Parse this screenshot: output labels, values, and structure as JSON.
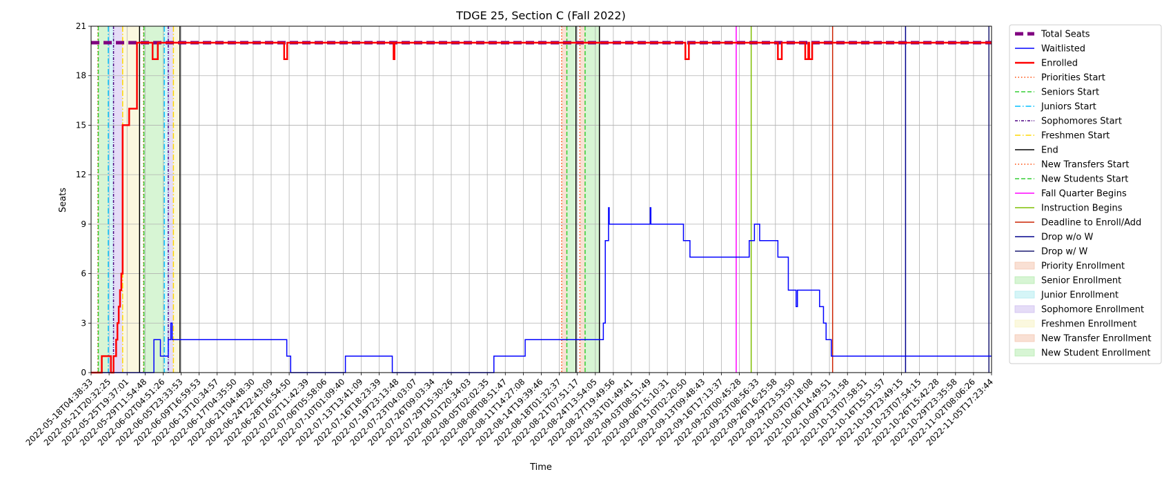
{
  "chart_data": {
    "type": "line",
    "title": "TDGE 25, Section C (Fall 2022)",
    "xlabel": "Time",
    "ylabel": "Seats",
    "ylim": [
      0,
      21
    ],
    "yticks": [
      0,
      3,
      6,
      9,
      12,
      15,
      18,
      21
    ],
    "grid": true,
    "legend_placement": "outside-right",
    "x_range": [
      "2022-05-18T04:38:33",
      "2022-11-07T00:00:00"
    ],
    "x_tick_labels": [
      "2022-05-18T04:38:33",
      "2022-05-21T20:32:25",
      "2022-05-25T19:37:01",
      "2022-05-29T11:54:48",
      "2022-06-02T04:51:26",
      "2022-06-05T23:33:53",
      "2022-06-09T16:59:53",
      "2022-06-13T10:34:57",
      "2022-06-17T04:35:50",
      "2022-06-21T04:48:30",
      "2022-06-24T22:43:09",
      "2022-06-28T16:54:50",
      "2022-07-02T11:42:39",
      "2022-07-06T05:58:06",
      "2022-07-10T01:09:40",
      "2022-07-13T13:41:09",
      "2022-07-16T18:23:39",
      "2022-07-19T23:13:48",
      "2022-07-23T04:03:07",
      "2022-07-26T09:03:34",
      "2022-07-29T15:30:26",
      "2022-08-01T20:34:03",
      "2022-08-05T02:02:35",
      "2022-08-08T08:51:47",
      "2022-08-11T14:27:08",
      "2022-08-14T19:39:46",
      "2022-08-18T01:32:37",
      "2022-08-21T07:51:17",
      "2022-08-24T13:54:05",
      "2022-08-27T19:49:56",
      "2022-08-31T01:49:41",
      "2022-09-03T08:51:49",
      "2022-09-06T15:10:31",
      "2022-09-10T02:20:50",
      "2022-09-13T09:48:43",
      "2022-09-16T17:13:37",
      "2022-09-20T00:45:28",
      "2022-09-23T08:56:33",
      "2022-09-26T16:25:58",
      "2022-09-29T23:53:50",
      "2022-10-03T07:18:08",
      "2022-10-06T14:49:51",
      "2022-10-09T22:31:58",
      "2022-10-13T07:58:51",
      "2022-10-16T15:51:57",
      "2022-10-19T23:49:15",
      "2022-10-23T07:54:15",
      "2022-10-26T15:42:28",
      "2022-10-29T23:35:58",
      "2022-11-02T08:06:26",
      "2022-11-05T17:23:44"
    ],
    "series": [
      {
        "name": "Total Seats",
        "color": "#800080",
        "style": "thick-dashed",
        "points": [
          [
            "2022-05-18T04:38:33",
            20
          ],
          [
            "2022-11-07T00:00:00",
            20
          ]
        ]
      },
      {
        "name": "Waitlisted",
        "color": "#0000ff",
        "style": "solid",
        "points": [
          [
            "2022-05-18T04:38:33",
            0
          ],
          [
            "2022-05-30T06:00:00",
            0
          ],
          [
            "2022-05-30T06:00:00",
            2
          ],
          [
            "2022-05-31T12:00:00",
            2
          ],
          [
            "2022-05-31T12:00:00",
            1
          ],
          [
            "2022-06-02T00:00:00",
            1
          ],
          [
            "2022-06-02T00:00:00",
            2
          ],
          [
            "2022-06-02T12:00:00",
            2
          ],
          [
            "2022-06-02T12:00:00",
            3
          ],
          [
            "2022-06-02T18:00:00",
            3
          ],
          [
            "2022-06-02T18:00:00",
            2
          ],
          [
            "2022-06-24T18:00:00",
            2
          ],
          [
            "2022-06-24T18:00:00",
            1
          ],
          [
            "2022-06-25T12:00:00",
            1
          ],
          [
            "2022-06-25T12:00:00",
            0
          ],
          [
            "2022-07-06T00:00:00",
            0
          ],
          [
            "2022-07-06T00:00:00",
            1
          ],
          [
            "2022-07-15T00:00:00",
            1
          ],
          [
            "2022-07-15T00:00:00",
            0
          ],
          [
            "2022-08-03T12:00:00",
            0
          ],
          [
            "2022-08-03T12:00:00",
            1
          ],
          [
            "2022-08-09T12:00:00",
            1
          ],
          [
            "2022-08-09T12:00:00",
            2
          ],
          [
            "2022-08-24T12:00:00",
            2
          ],
          [
            "2022-08-24T12:00:00",
            3
          ],
          [
            "2022-08-24T21:00:00",
            3
          ],
          [
            "2022-08-24T21:00:00",
            8
          ],
          [
            "2022-08-25T12:00:00",
            8
          ],
          [
            "2022-08-25T12:00:00",
            10
          ],
          [
            "2022-08-25T15:00:00",
            10
          ],
          [
            "2022-08-25T15:00:00",
            9
          ],
          [
            "2022-09-02T12:00:00",
            9
          ],
          [
            "2022-09-02T12:00:00",
            10
          ],
          [
            "2022-09-02T15:00:00",
            10
          ],
          [
            "2022-09-02T15:00:00",
            9
          ],
          [
            "2022-09-08T21:00:00",
            9
          ],
          [
            "2022-09-08T21:00:00",
            8
          ],
          [
            "2022-09-10T03:00:00",
            8
          ],
          [
            "2022-09-10T03:00:00",
            7
          ],
          [
            "2022-09-21T12:00:00",
            7
          ],
          [
            "2022-09-21T12:00:00",
            8
          ],
          [
            "2022-09-22T12:00:00",
            8
          ],
          [
            "2022-09-22T12:00:00",
            9
          ],
          [
            "2022-09-23T12:00:00",
            9
          ],
          [
            "2022-09-23T12:00:00",
            8
          ],
          [
            "2022-09-27T00:00:00",
            8
          ],
          [
            "2022-09-27T00:00:00",
            7
          ],
          [
            "2022-09-29T00:00:00",
            7
          ],
          [
            "2022-09-29T00:00:00",
            5
          ],
          [
            "2022-09-30T12:00:00",
            5
          ],
          [
            "2022-09-30T12:00:00",
            4
          ],
          [
            "2022-09-30T18:00:00",
            4
          ],
          [
            "2022-09-30T18:00:00",
            5
          ],
          [
            "2022-10-05T00:00:00",
            5
          ],
          [
            "2022-10-05T00:00:00",
            4
          ],
          [
            "2022-10-05T18:00:00",
            4
          ],
          [
            "2022-10-05T18:00:00",
            3
          ],
          [
            "2022-10-06T06:00:00",
            3
          ],
          [
            "2022-10-06T06:00:00",
            2
          ],
          [
            "2022-10-07T06:00:00",
            2
          ],
          [
            "2022-10-07T06:00:00",
            1
          ],
          [
            "2022-11-07T00:00:00",
            1
          ]
        ]
      },
      {
        "name": "Enrolled",
        "color": "#ff0000",
        "style": "thick",
        "points": [
          [
            "2022-05-18T04:38:33",
            0
          ],
          [
            "2022-05-20T06:00:00",
            0
          ],
          [
            "2022-05-20T06:00:00",
            1
          ],
          [
            "2022-05-22T00:00:00",
            1
          ],
          [
            "2022-05-22T00:00:00",
            0
          ],
          [
            "2022-05-22T12:00:00",
            0
          ],
          [
            "2022-05-22T12:00:00",
            1
          ],
          [
            "2022-05-23T00:00:00",
            1
          ],
          [
            "2022-05-23T00:00:00",
            2
          ],
          [
            "2022-05-23T06:00:00",
            2
          ],
          [
            "2022-05-23T06:00:00",
            3
          ],
          [
            "2022-05-23T12:00:00",
            3
          ],
          [
            "2022-05-23T12:00:00",
            4
          ],
          [
            "2022-05-23T18:00:00",
            4
          ],
          [
            "2022-05-23T18:00:00",
            5
          ],
          [
            "2022-05-24T00:00:00",
            5
          ],
          [
            "2022-05-24T00:00:00",
            6
          ],
          [
            "2022-05-24T06:00:00",
            6
          ],
          [
            "2022-05-24T06:00:00",
            15
          ],
          [
            "2022-05-25T12:00:00",
            15
          ],
          [
            "2022-05-25T12:00:00",
            16
          ],
          [
            "2022-05-27T00:00:00",
            16
          ],
          [
            "2022-05-27T00:00:00",
            20
          ],
          [
            "2022-05-30T00:00:00",
            20
          ],
          [
            "2022-05-30T00:00:00",
            19
          ],
          [
            "2022-05-31T00:00:00",
            19
          ],
          [
            "2022-05-31T00:00:00",
            20
          ],
          [
            "2022-06-24T06:00:00",
            20
          ],
          [
            "2022-06-24T06:00:00",
            19
          ],
          [
            "2022-06-24T20:00:00",
            19
          ],
          [
            "2022-06-24T20:00:00",
            20
          ],
          [
            "2022-07-15T06:00:00",
            20
          ],
          [
            "2022-07-15T06:00:00",
            19
          ],
          [
            "2022-07-15T10:00:00",
            19
          ],
          [
            "2022-07-15T10:00:00",
            20
          ],
          [
            "2022-09-09T06:00:00",
            20
          ],
          [
            "2022-09-09T06:00:00",
            19
          ],
          [
            "2022-09-09T22:00:00",
            19
          ],
          [
            "2022-09-09T22:00:00",
            20
          ],
          [
            "2022-09-27T00:00:00",
            20
          ],
          [
            "2022-09-27T00:00:00",
            19
          ],
          [
            "2022-09-27T18:00:00",
            19
          ],
          [
            "2022-09-27T18:00:00",
            20
          ],
          [
            "2022-10-02T06:00:00",
            20
          ],
          [
            "2022-10-02T06:00:00",
            19
          ],
          [
            "2022-10-02T20:00:00",
            19
          ],
          [
            "2022-10-02T20:00:00",
            20
          ],
          [
            "2022-10-03T00:00:00",
            20
          ],
          [
            "2022-10-03T00:00:00",
            19
          ],
          [
            "2022-10-03T14:00:00",
            19
          ],
          [
            "2022-10-03T14:00:00",
            20
          ],
          [
            "2022-11-07T00:00:00",
            20
          ]
        ]
      }
    ],
    "vertical_lines": [
      {
        "name": "Priorities Start",
        "color": "#ff4500",
        "style": "dotted",
        "x": "2022-05-19T12:00:00"
      },
      {
        "name": "Seniors Start",
        "color": "#32cd32",
        "style": "dashed",
        "x": "2022-05-19T14:00:00"
      },
      {
        "name": "Juniors Start",
        "color": "#00bfff",
        "style": "dashdot",
        "x": "2022-05-21T12:00:00"
      },
      {
        "name": "Sophomores Start",
        "color": "#4b0082",
        "style": "dashdot-dense",
        "x": "2022-05-22T12:00:00"
      },
      {
        "name": "Freshmen Start",
        "color": "#ffd700",
        "style": "dashdot",
        "x": "2022-05-24T06:00:00"
      },
      {
        "name": "End",
        "color": "#000000",
        "style": "solid",
        "x": "2022-05-27T12:00:00"
      },
      {
        "name": "Priorities Start",
        "color": "#ff4500",
        "style": "dotted",
        "x": "2022-05-28T06:00:00"
      },
      {
        "name": "Seniors Start",
        "color": "#32cd32",
        "style": "dashed",
        "x": "2022-05-28T08:00:00"
      },
      {
        "name": "Juniors Start",
        "color": "#00bfff",
        "style": "dashdot",
        "x": "2022-06-01T06:00:00"
      },
      {
        "name": "Sophomores Start",
        "color": "#4b0082",
        "style": "dashdot-dense",
        "x": "2022-06-02T00:00:00"
      },
      {
        "name": "Freshmen Start",
        "color": "#ffd700",
        "style": "dashdot",
        "x": "2022-06-03T00:00:00"
      },
      {
        "name": "End",
        "color": "#000000",
        "style": "solid",
        "x": "2022-06-04T06:00:00"
      },
      {
        "name": "New Transfers Start",
        "color": "#ff4500",
        "style": "dotted",
        "x": "2022-08-16T12:00:00"
      },
      {
        "name": "New Students Start",
        "color": "#32cd32",
        "style": "dashed",
        "x": "2022-08-17T12:00:00"
      },
      {
        "name": "End",
        "color": "#000000",
        "style": "solid",
        "x": "2022-08-19T06:00:00"
      },
      {
        "name": "New Transfers Start",
        "color": "#ff4500",
        "style": "dotted",
        "x": "2022-08-20T00:00:00"
      },
      {
        "name": "New Students Start",
        "color": "#32cd32",
        "style": "dashed",
        "x": "2022-08-21T00:00:00"
      },
      {
        "name": "End",
        "color": "#000000",
        "style": "solid",
        "x": "2022-08-23T18:00:00"
      },
      {
        "name": "Fall Quarter Begins",
        "color": "#ff00ff",
        "style": "solid",
        "x": "2022-09-19T00:00:00"
      },
      {
        "name": "Instruction Begins",
        "color": "#7fbf00",
        "style": "solid",
        "x": "2022-09-21T21:00:00"
      },
      {
        "name": "Deadline to Enroll/Add",
        "color": "#cc2200",
        "style": "solid",
        "x": "2022-10-07T12:00:00"
      },
      {
        "name": "Drop w/o W",
        "color": "#00008b",
        "style": "solid",
        "x": "2022-10-21T12:00:00"
      },
      {
        "name": "Drop w/ W",
        "color": "#191970",
        "style": "solid",
        "x": "2022-11-06T12:00:00"
      }
    ],
    "shaded_spans": [
      {
        "name": "Priority Enrollment",
        "color": "#f4c7b0",
        "start": "2022-05-19T12:00:00",
        "end": "2022-05-19T14:00:00"
      },
      {
        "name": "Senior Enrollment",
        "color": "#b6ecb0",
        "start": "2022-05-19T14:00:00",
        "end": "2022-05-21T12:00:00"
      },
      {
        "name": "Junior Enrollment",
        "color": "#b3ecf0",
        "start": "2022-05-21T12:00:00",
        "end": "2022-05-22T12:00:00"
      },
      {
        "name": "Sophomore Enrollment",
        "color": "#d0c0f0",
        "start": "2022-05-22T12:00:00",
        "end": "2022-05-24T06:00:00"
      },
      {
        "name": "Freshmen Enrollment",
        "color": "#f7f3c4",
        "start": "2022-05-24T06:00:00",
        "end": "2022-05-27T12:00:00"
      },
      {
        "name": "Priority Enrollment",
        "color": "#f4c7b0",
        "start": "2022-05-28T06:00:00",
        "end": "2022-05-28T08:00:00"
      },
      {
        "name": "Senior Enrollment",
        "color": "#b6ecb0",
        "start": "2022-05-28T08:00:00",
        "end": "2022-06-01T06:00:00"
      },
      {
        "name": "Junior Enrollment",
        "color": "#b3ecf0",
        "start": "2022-06-01T06:00:00",
        "end": "2022-06-02T00:00:00"
      },
      {
        "name": "Sophomore Enrollment",
        "color": "#d0c0f0",
        "start": "2022-06-02T00:00:00",
        "end": "2022-06-03T00:00:00"
      },
      {
        "name": "Freshmen Enrollment",
        "color": "#f7f3c4",
        "start": "2022-06-03T00:00:00",
        "end": "2022-06-04T06:00:00"
      },
      {
        "name": "New Transfer Enrollment",
        "color": "#f4c7b0",
        "start": "2022-08-16T12:00:00",
        "end": "2022-08-17T12:00:00"
      },
      {
        "name": "New Student Enrollment",
        "color": "#b6ecb0",
        "start": "2022-08-17T12:00:00",
        "end": "2022-08-19T06:00:00"
      },
      {
        "name": "New Transfer Enrollment",
        "color": "#f4c7b0",
        "start": "2022-08-20T00:00:00",
        "end": "2022-08-21T00:00:00"
      },
      {
        "name": "New Student Enrollment",
        "color": "#b6ecb0",
        "start": "2022-08-21T00:00:00",
        "end": "2022-08-23T18:00:00"
      }
    ],
    "legend": [
      {
        "label": "Total Seats",
        "kind": "line",
        "color": "#800080",
        "style": "thick-dashed"
      },
      {
        "label": "Waitlisted",
        "kind": "line",
        "color": "#0000ff",
        "style": "solid"
      },
      {
        "label": "Enrolled",
        "kind": "line",
        "color": "#ff0000",
        "style": "thick"
      },
      {
        "label": "Priorities Start",
        "kind": "line",
        "color": "#ff4500",
        "style": "dotted"
      },
      {
        "label": "Seniors Start",
        "kind": "line",
        "color": "#32cd32",
        "style": "dashed"
      },
      {
        "label": "Juniors Start",
        "kind": "line",
        "color": "#00bfff",
        "style": "dashdot"
      },
      {
        "label": "Sophomores Start",
        "kind": "line",
        "color": "#4b0082",
        "style": "dashdot-dense"
      },
      {
        "label": "Freshmen Start",
        "kind": "line",
        "color": "#ffd700",
        "style": "dashdot"
      },
      {
        "label": "End",
        "kind": "line",
        "color": "#000000",
        "style": "solid"
      },
      {
        "label": "New Transfers Start",
        "kind": "line",
        "color": "#ff4500",
        "style": "dotted"
      },
      {
        "label": "New Students Start",
        "kind": "line",
        "color": "#32cd32",
        "style": "dashed"
      },
      {
        "label": "Fall Quarter Begins",
        "kind": "line",
        "color": "#ff00ff",
        "style": "solid"
      },
      {
        "label": "Instruction Begins",
        "kind": "line",
        "color": "#7fbf00",
        "style": "solid"
      },
      {
        "label": "Deadline to Enroll/Add",
        "kind": "line",
        "color": "#cc2200",
        "style": "solid"
      },
      {
        "label": "Drop w/o W",
        "kind": "line",
        "color": "#00008b",
        "style": "solid"
      },
      {
        "label": "Drop w/ W",
        "kind": "line",
        "color": "#191970",
        "style": "solid"
      },
      {
        "label": "Priority Enrollment",
        "kind": "patch",
        "color": "#f4c7b0"
      },
      {
        "label": "Senior Enrollment",
        "kind": "patch",
        "color": "#b6ecb0"
      },
      {
        "label": "Junior Enrollment",
        "kind": "patch",
        "color": "#b3ecf0"
      },
      {
        "label": "Sophomore Enrollment",
        "kind": "patch",
        "color": "#d0c0f0"
      },
      {
        "label": "Freshmen Enrollment",
        "kind": "patch",
        "color": "#f7f3c4"
      },
      {
        "label": "New Transfer Enrollment",
        "kind": "patch",
        "color": "#f4c7b0"
      },
      {
        "label": "New Student Enrollment",
        "kind": "patch",
        "color": "#b6ecb0"
      }
    ]
  }
}
